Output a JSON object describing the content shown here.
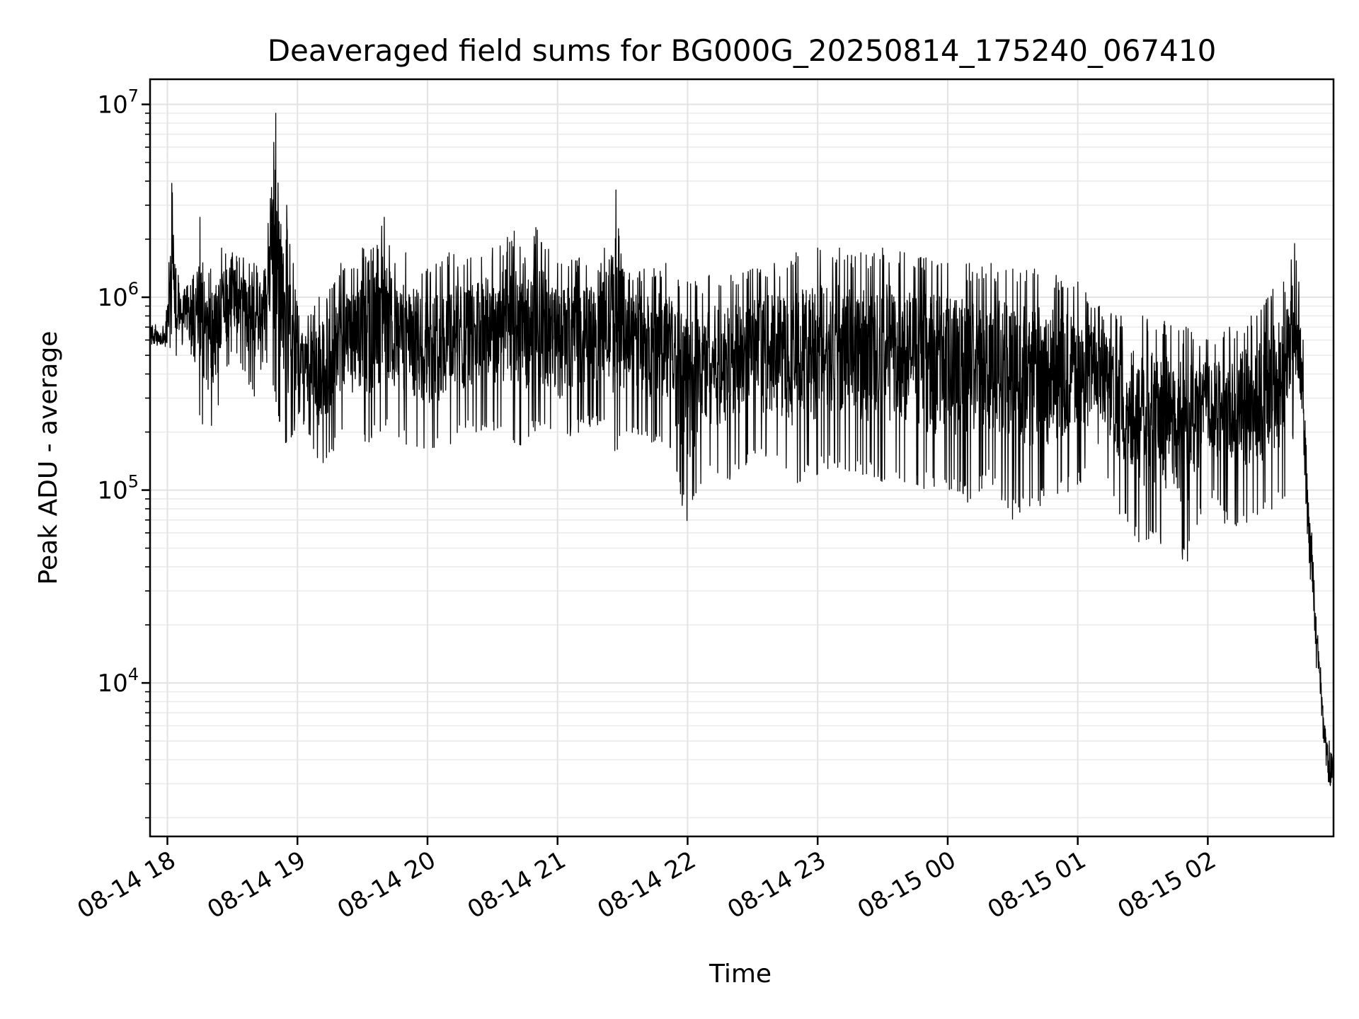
{
  "chart_data": {
    "type": "line",
    "title": "Deaveraged field sums for BG000G_20250814_175240_067410",
    "xlabel": "Time",
    "ylabel": "Peak ADU - average",
    "yscale": "log",
    "grid": "major and minor, both axes",
    "xlim": [
      "2025-08-14 17:52",
      "2025-08-15 02:58"
    ],
    "ylim": [
      1600,
      13500000
    ],
    "x_ticks": [
      "08-14 18",
      "08-14 19",
      "08-14 20",
      "08-14 21",
      "08-14 22",
      "08-14 23",
      "08-15 00",
      "08-15 01",
      "08-15 02"
    ],
    "y_ticks": [
      {
        "base": "10",
        "exp": "4",
        "value": 10000
      },
      {
        "base": "10",
        "exp": "5",
        "value": 100000
      },
      {
        "base": "10",
        "exp": "6",
        "value": 1000000
      },
      {
        "base": "10",
        "exp": "7",
        "value": 10000000
      }
    ],
    "series": [
      {
        "color": "#000000",
        "x": [
          "2025-08-14 17:52",
          "2025-08-14 17:57",
          "2025-08-14 18:00",
          "2025-08-14 18:02",
          "2025-08-14 18:05",
          "2025-08-14 18:08",
          "2025-08-14 18:12",
          "2025-08-14 18:15",
          "2025-08-14 18:17",
          "2025-08-14 18:20",
          "2025-08-14 18:25",
          "2025-08-14 18:30",
          "2025-08-14 18:35",
          "2025-08-14 18:40",
          "2025-08-14 18:45",
          "2025-08-14 18:50",
          "2025-08-14 18:55",
          "2025-08-14 18:58",
          "2025-08-14 19:00",
          "2025-08-14 19:05",
          "2025-08-14 19:08",
          "2025-08-14 19:10",
          "2025-08-14 19:15",
          "2025-08-14 19:20",
          "2025-08-14 19:25",
          "2025-08-14 19:30",
          "2025-08-14 19:35",
          "2025-08-14 19:40",
          "2025-08-14 19:45",
          "2025-08-14 19:50",
          "2025-08-14 20:00",
          "2025-08-14 20:10",
          "2025-08-14 20:20",
          "2025-08-14 20:30",
          "2025-08-14 20:40",
          "2025-08-14 20:45",
          "2025-08-14 20:50",
          "2025-08-14 21:00",
          "2025-08-14 21:10",
          "2025-08-14 21:20",
          "2025-08-14 21:27",
          "2025-08-14 21:30",
          "2025-08-14 21:40",
          "2025-08-14 21:50",
          "2025-08-14 22:00",
          "2025-08-14 22:10",
          "2025-08-14 22:20",
          "2025-08-14 22:30",
          "2025-08-14 22:40",
          "2025-08-14 22:50",
          "2025-08-14 23:00",
          "2025-08-14 23:10",
          "2025-08-14 23:20",
          "2025-08-14 23:30",
          "2025-08-14 23:40",
          "2025-08-14 23:50",
          "2025-08-15 00:00",
          "2025-08-15 00:10",
          "2025-08-15 00:20",
          "2025-08-15 00:30",
          "2025-08-15 00:40",
          "2025-08-15 00:50",
          "2025-08-15 01:00",
          "2025-08-15 01:10",
          "2025-08-15 01:20",
          "2025-08-15 01:30",
          "2025-08-15 01:40",
          "2025-08-15 01:50",
          "2025-08-15 02:00",
          "2025-08-15 02:10",
          "2025-08-15 02:20",
          "2025-08-15 02:30",
          "2025-08-15 02:35",
          "2025-08-15 02:40",
          "2025-08-15 02:42",
          "2025-08-15 02:44",
          "2025-08-15 02:46",
          "2025-08-15 02:48",
          "2025-08-15 02:50",
          "2025-08-15 02:52",
          "2025-08-15 02:54",
          "2025-08-15 02:56",
          "2025-08-15 02:58"
        ],
        "y_lo": [
          500000,
          520000,
          450000,
          600000,
          400000,
          700000,
          300000,
          220000,
          200000,
          180000,
          300000,
          550000,
          400000,
          300000,
          500000,
          250000,
          150000,
          180000,
          240000,
          200000,
          150000,
          130000,
          140000,
          200000,
          170000,
          160000,
          180000,
          200000,
          200000,
          170000,
          160000,
          170000,
          200000,
          200000,
          150000,
          170000,
          200000,
          170000,
          200000,
          220000,
          130000,
          200000,
          180000,
          170000,
          65000,
          120000,
          110000,
          140000,
          130000,
          100000,
          120000,
          130000,
          120000,
          110000,
          110000,
          100000,
          95000,
          85000,
          110000,
          70000,
          80000,
          90000,
          100000,
          160000,
          70000,
          50000,
          50000,
          40000,
          100000,
          60000,
          70000,
          80000,
          80000,
          200000,
          200000,
          170000,
          55000,
          25000,
          12000,
          8500,
          3500,
          2300,
          2800
        ],
        "y_hi": [
          800000,
          650000,
          900000,
          3900000,
          1300000,
          1100000,
          1300000,
          2600000,
          1200000,
          1400000,
          1800000,
          1700000,
          1600000,
          1500000,
          1400000,
          9000000,
          3000000,
          1500000,
          900000,
          800000,
          900000,
          1000000,
          1100000,
          1500000,
          1400000,
          1800000,
          1800000,
          2600000,
          1500000,
          1700000,
          1400000,
          1700000,
          1600000,
          1800000,
          2200000,
          1600000,
          2300000,
          1500000,
          1600000,
          1500000,
          3600000,
          1400000,
          1400000,
          1500000,
          1200000,
          1300000,
          1300000,
          1400000,
          1500000,
          1700000,
          1800000,
          1800000,
          1700000,
          1800000,
          1700000,
          1600000,
          1500000,
          1500000,
          1500000,
          1400000,
          1400000,
          1300000,
          1200000,
          900000,
          800000,
          800000,
          750000,
          700000,
          600000,
          700000,
          800000,
          1100000,
          1200000,
          1900000,
          1200000,
          600000,
          100000,
          60000,
          22000,
          12000,
          6000,
          5000,
          4500
        ]
      }
    ]
  }
}
